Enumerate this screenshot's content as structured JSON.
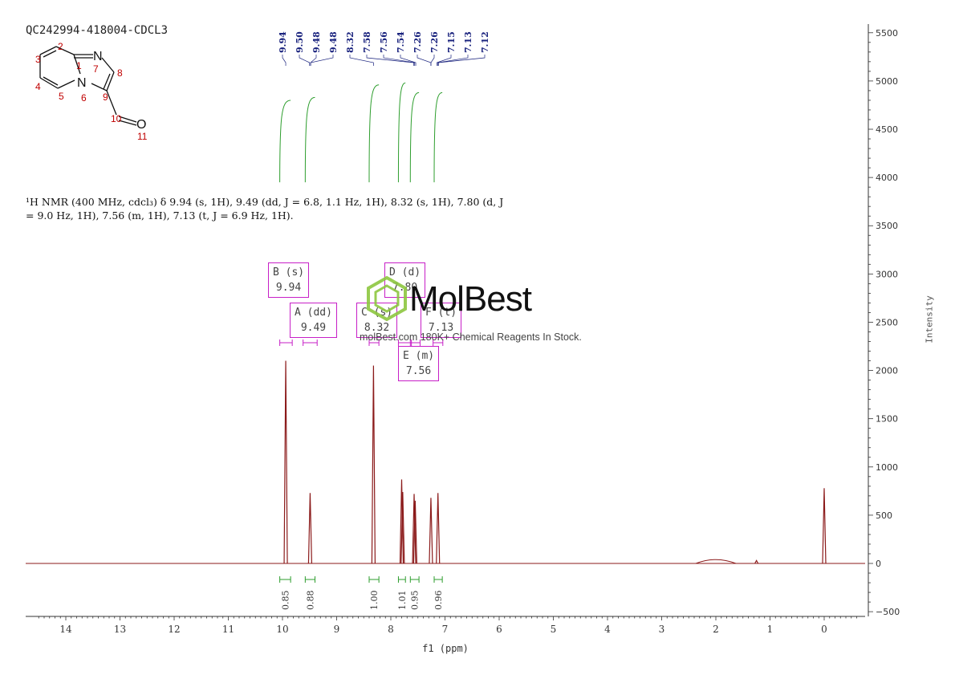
{
  "sample_id": "QC242994-418004-CDCL3",
  "structure": {
    "atom_labels": [
      "2",
      "3",
      "1",
      "N",
      "7",
      "8",
      "4",
      "N",
      "6",
      "9",
      "5",
      "10",
      "O",
      "11"
    ]
  },
  "nmr_description": {
    "line1": "¹H NMR (400 MHz, cdcl₃) δ 9.94 (s, 1H), 9.49 (dd, J = 6.8, 1.1 Hz, 1H), 8.32 (s, 1H), 7.80 (d, J",
    "line2": "= 9.0 Hz, 1H), 7.56 (m, 1H), 7.13 (t, J = 6.9 Hz, 1H)."
  },
  "watermark": {
    "logo": "MolBest",
    "tagline": "molBest.com 180K+ Chemical Reagents In Stock.",
    "logo_color": "#8dc63f"
  },
  "colors": {
    "spectrum": "#8b1a1a",
    "peak_label": "#1a237e",
    "integral": "#2e9e2e",
    "multiplet_box": "#c71fc7"
  },
  "multiplets": [
    {
      "letter": "B",
      "type": "(s)",
      "shift": "9.94"
    },
    {
      "letter": "A",
      "type": "(dd)",
      "shift": "9.49"
    },
    {
      "letter": "C",
      "type": "(s)",
      "shift": "8.32"
    },
    {
      "letter": "D",
      "type": "(d)",
      "shift": "7.80"
    },
    {
      "letter": "F",
      "type": "(t)",
      "shift": "7.13"
    },
    {
      "letter": "E",
      "type": "(m)",
      "shift": "7.56"
    }
  ],
  "chart_data": {
    "type": "line",
    "title": "",
    "xlabel": "f1 (ppm)",
    "ylabel": "Intensity",
    "xlim": [
      14.8,
      -0.8
    ],
    "ylim": [
      -500,
      5600
    ],
    "x_ticks": [
      "14",
      "13",
      "12",
      "11",
      "10",
      "9",
      "8",
      "7",
      "6",
      "5",
      "4",
      "3",
      "2",
      "1",
      "0"
    ],
    "y_ticks": [
      "5500",
      "5000",
      "4500",
      "4000",
      "3500",
      "3000",
      "2500",
      "2000",
      "1500",
      "1000",
      "500",
      "0",
      "-500"
    ],
    "peak_labels": [
      "9.94",
      "9.50",
      "9.48",
      "9.48",
      "8.32",
      "7.58",
      "7.56",
      "7.54",
      "7.26",
      "7.26",
      "7.15",
      "7.13",
      "7.12"
    ],
    "peaks": [
      {
        "ppm": 9.94,
        "height": 2100
      },
      {
        "ppm": 9.49,
        "height": 730
      },
      {
        "ppm": 8.32,
        "height": 2050
      },
      {
        "ppm": 7.8,
        "height": 870
      },
      {
        "ppm": 7.78,
        "height": 740
      },
      {
        "ppm": 7.57,
        "height": 720
      },
      {
        "ppm": 7.55,
        "height": 650
      },
      {
        "ppm": 7.26,
        "height": 680
      },
      {
        "ppm": 7.13,
        "height": 730
      },
      {
        "ppm": 2.0,
        "height": 30
      },
      {
        "ppm": 1.25,
        "height": 30
      },
      {
        "ppm": 0.0,
        "height": 780
      }
    ],
    "integrals": [
      {
        "from": 10.05,
        "to": 9.85,
        "value": "0.85",
        "curve_bottom": 3950,
        "curve_top": 4800
      },
      {
        "from": 9.58,
        "to": 9.4,
        "value": "0.88",
        "curve_bottom": 3950,
        "curve_top": 4830
      },
      {
        "from": 8.4,
        "to": 8.22,
        "value": "1.00",
        "curve_bottom": 3950,
        "curve_top": 4960
      },
      {
        "from": 7.86,
        "to": 7.73,
        "value": "1.01",
        "curve_bottom": 3950,
        "curve_top": 4980
      },
      {
        "from": 7.64,
        "to": 7.48,
        "value": "0.95",
        "curve_bottom": 3950,
        "curve_top": 4880
      },
      {
        "from": 7.2,
        "to": 7.05,
        "value": "0.96",
        "curve_bottom": 3950,
        "curve_top": 4880
      }
    ]
  }
}
